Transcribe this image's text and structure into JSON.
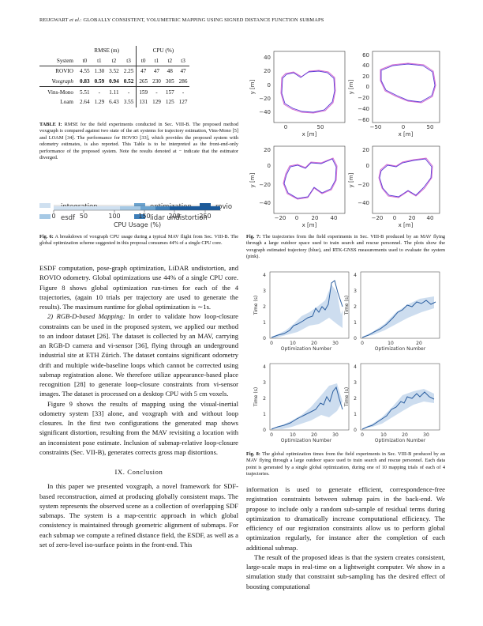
{
  "header": {
    "authors": "REIJGWART",
    "etal": "et al.",
    "title": ": GLOBALLY CONSISTENT, VOLUMETRIC MAPPING USING SIGNED DISTANCE FUNCTION SUBMAPS"
  },
  "table1": {
    "group_rmse": "RMSE (m)",
    "group_cpu": "CPU (%)",
    "system_label": "System",
    "cols": [
      "t0",
      "t1",
      "t2",
      "t3",
      "t0",
      "t1",
      "t2",
      "t3"
    ],
    "rows": [
      {
        "name": "ROVIO",
        "italic": false,
        "vals": [
          "4.55",
          "1.30",
          "3.52",
          "2.25",
          "47",
          "47",
          "48",
          "47"
        ],
        "bold": [
          false,
          false,
          false,
          false,
          false,
          false,
          false,
          false
        ]
      },
      {
        "name": "Voxgraph",
        "italic": true,
        "vals": [
          "0.83",
          "0.59",
          "0.94",
          "0.52",
          "265",
          "230",
          "305",
          "286"
        ],
        "bold": [
          true,
          true,
          true,
          true,
          false,
          false,
          false,
          false
        ]
      },
      {
        "name": "Vins-Mono",
        "italic": false,
        "vals": [
          "5.51",
          "-",
          "1.11",
          "-",
          "159",
          "-",
          "157",
          "-"
        ],
        "bold": [
          false,
          false,
          false,
          false,
          false,
          false,
          false,
          false
        ]
      },
      {
        "name": "Loam",
        "italic": false,
        "vals": [
          "2.64",
          "1.29",
          "6.43",
          "3.55",
          "131",
          "129",
          "125",
          "127"
        ],
        "bold": [
          false,
          false,
          false,
          false,
          false,
          false,
          false,
          false
        ]
      }
    ],
    "caption_label": "TABLE I:",
    "caption_text": " RMSE for the field experiments conducted in Sec. VIII-B. The proposed method voxgraph is compared against two state of the art systems for trajectory estimation, Vins-Mono [5] and LOAM [34]. The performance for ROVIO [33], which provides the proposed system with odometry estimates, is also reported. This Table is to be interpreted as the front-end-only performance of the proposed system. Note the results denoted at − indicate that the estimator diverged."
  },
  "fig6": {
    "legend": [
      "integration",
      "optimization",
      "rovio",
      "esdf",
      "lidar undistortion"
    ],
    "ticks": [
      "0",
      "50",
      "100",
      "150",
      "200",
      "250"
    ],
    "xlabel": "CPU Usage (%)",
    "caption_label": "Fig. 6:",
    "caption_text": " A breakdown of voxgraph CPU usage during a typical MAV flight from Sec. VIII-B. The global optimization scheme suggested in this proposal consumes 44% of a single CPU core."
  },
  "fig7": {
    "ylabel": "y [m]",
    "xlabel": "x [m]",
    "caption_label": "Fig. 7:",
    "caption_text": " The trajectories from the field experiments in Sec. VIII-B produced by an MAV flying through a large outdoor space used to train search and rescue personnel. The plots show the voxgraph estimated trajectory (blue), and RTK-GNSS measurements used to evaluate the system (pink).",
    "p1_y": [
      "40",
      "20",
      "0",
      "−20",
      "−40"
    ],
    "p1_x": [
      "0",
      "50"
    ],
    "p2_y": [
      "60",
      "40",
      "20",
      "0",
      "−20",
      "−40",
      "−60"
    ],
    "p2_x": [
      "−50",
      "0",
      "50"
    ],
    "p3_y": [
      "20",
      "0",
      "−20",
      "−40"
    ],
    "p3_x": [
      "−20",
      "0",
      "20",
      "40"
    ],
    "p4_y": [
      "20",
      "0",
      "−20",
      "−40"
    ],
    "p4_x": [
      "−20",
      "0",
      "20",
      "40"
    ]
  },
  "fig8": {
    "ylabel": "Time (s)",
    "xlabel": "Optimization Number",
    "yticks": [
      "4",
      "3",
      "2",
      "1",
      "0"
    ],
    "xticks_a": [
      "0",
      "10",
      "20",
      "30"
    ],
    "xticks_b": [
      "0",
      "10",
      "20"
    ],
    "caption_label": "Fig. 8:",
    "caption_text": " The global optimization times from the field experiments in Sec. VIII-B produced by an MAV flying through a large outdoor space used to train search and rescue personnel. Each data point is generated by a single global optimization, during one of 10 mapping trials of each of 4 trajectories."
  },
  "left_body": {
    "p1": "ESDF computation, pose-graph optimization, LiDAR undistortion, and ROVIO odometry. Global optimizations use 44% of a single CPU core. Figure 8 shows global optimization run-times for each of the 4 trajectories, (again 10 trials per trajectory are used to generate the results). The maximum runtime for global optimization is ∼1s.",
    "p2_head": "2) RGB-D-based Mapping:",
    "p2": " In order to validate how loop-closure constraints can be used in the proposed system, we applied our method to an indoor dataset [26]. The dataset is collected by an MAV, carrying an RGB-D camera and vi-sensor [36], flying through an underground industrial site at ETH Zürich. The dataset contains significant odometry drift and multiple wide-baseline loops which cannot be corrected using submap registration alone. We therefore utilize appearance-based place recognition [28] to generate loop-closure constraints from vi-sensor images. The dataset is processed on a desktop CPU with 5 cm voxels.",
    "p3": "Figure 9 shows the results of mapping using the visual-inertial odometry system [33] alone, and voxgraph with and without loop closures. In the first two configurations the generated map shows significant distortion, resulting from the MAV revisiting a location with an inconsistent pose estimate. Inclusion of submap-relative loop-closure constraints (Sec. VII-B), generates corrects gross map distortions.",
    "section": "IX. Conclusion",
    "p4": "In this paper we presented voxgraph, a novel framework for SDF-based reconstruction, aimed at producing globally consistent maps. The system represents the observed scene as a collection of overlapping SDF submaps. The system is a map-centric approach in which global consistency is maintained through geometric alignment of submaps. For each submap we compute a refined distance field, the ESDF, as well as a set of zero-level iso-surface points in the front-end. This"
  },
  "right_body": {
    "p1": "information is used to generate efficient, correspondence-free registration constraints between submap pairs in the back-end. We propose to include only a random sub-sample of residual terms during optimization to dramatically increase computational efficiency. The efficiency of our registration constraints allow us to perform global optimization regularly, for instance after the completion of each additional submap.",
    "p2": "The result of the proposed ideas is that the system creates consistent, large-scale maps in real-time on a lightweight computer. We show in a simulation study that constraint sub-sampling has the desired effect of boosting computational"
  }
}
